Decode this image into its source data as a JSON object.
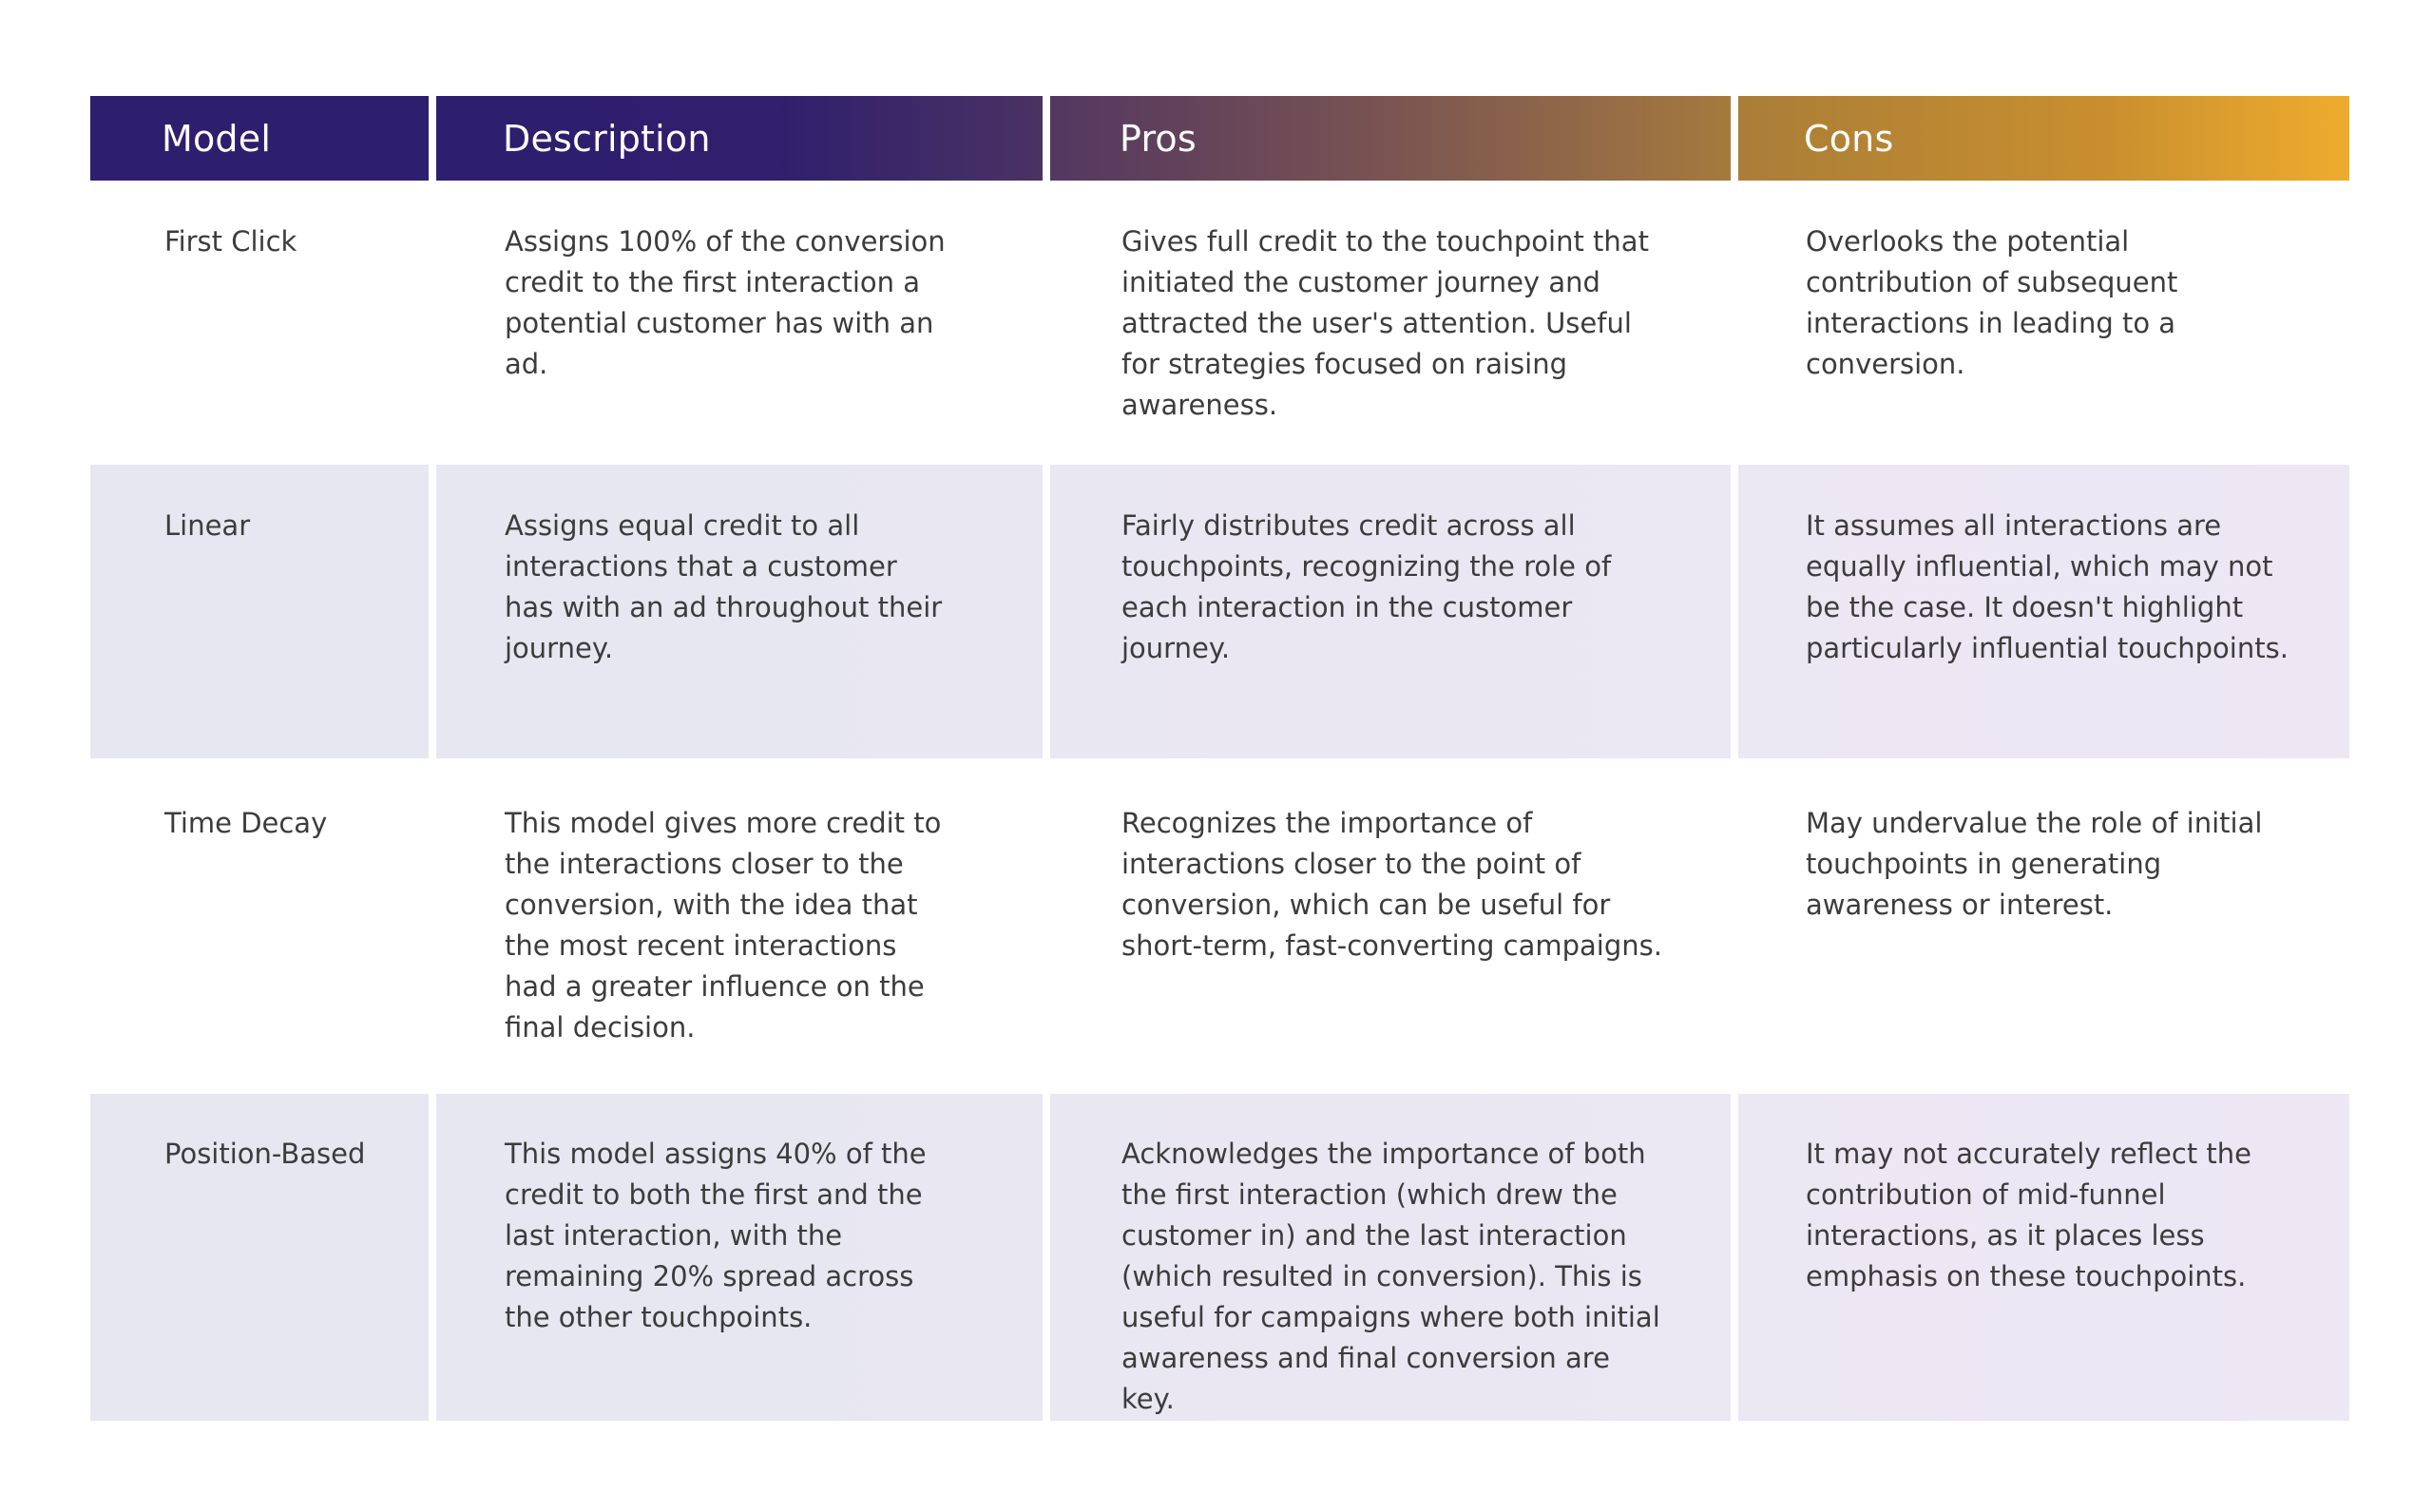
{
  "table": {
    "headers": [
      "Model",
      "Description",
      "Pros",
      "Cons"
    ],
    "rows": [
      {
        "model": "First Click",
        "description": "Assigns 100% of the conversion credit to the first interaction a potential customer has with an ad.",
        "pros": "Gives full credit to the touchpoint that initiated the customer journey and attracted the user's attention. Useful for strategies focused on raising awareness.",
        "cons": "Overlooks the potential contribution of subsequent interactions in leading to a conversion."
      },
      {
        "model": "Linear",
        "description": "Assigns equal credit to all interactions that a customer has with an ad throughout their journey.",
        "pros": "Fairly distributes credit across all touchpoints, recognizing the role of each interaction in the customer journey.",
        "cons": "It assumes all interactions are equally influential, which may not be the case. It doesn't highlight particularly influential touchpoints."
      },
      {
        "model": "Time Decay",
        "description": "This model gives more credit to the interactions closer to the conversion, with the idea that the most recent interactions had a greater influence on the final decision.",
        "pros": "Recognizes the importance of interactions closer to the point of conversion, which can be useful for short-term, fast-converting campaigns.",
        "cons": "May undervalue the role of initial touchpoints in generating awareness or interest."
      },
      {
        "model": "Position-Based",
        "description": "This model assigns 40% of the credit to both the first and the last interaction, with the remaining 20% spread across the other touchpoints.",
        "pros": "Acknowledges the importance of both the first interaction (which drew the customer in) and the last interaction (which resulted in conversion). This is useful for campaigns where both initial awareness and final conversion are key.",
        "cons": "It may not accurately reflect the contribution of mid-funnel interactions, as it places less emphasis on these touchpoints."
      }
    ]
  },
  "colors": {
    "header_start": "#2e1e6e",
    "header_end": "#eeac2e",
    "row_shade": "#e6e7f1",
    "text": "#3c3c3c"
  }
}
